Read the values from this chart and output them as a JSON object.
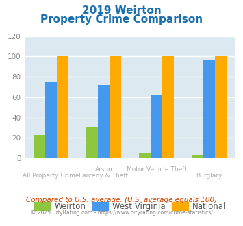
{
  "title_line1": "2019 Weirton",
  "title_line2": "Property Crime Comparison",
  "cat_labels_line1": [
    "All Property Crime",
    "Arson",
    "Motor Vehicle Theft",
    "Burglary"
  ],
  "cat_labels_line2": [
    "",
    "Larceny & Theft",
    "",
    ""
  ],
  "series": {
    "Weirton": [
      23,
      30,
      5,
      3
    ],
    "West Virginia": [
      75,
      72,
      62,
      96
    ],
    "National": [
      100,
      100,
      100,
      100
    ]
  },
  "colors": {
    "Weirton": "#8dc63f",
    "West Virginia": "#4499ee",
    "National": "#ffaa00"
  },
  "ylim": [
    0,
    120
  ],
  "yticks": [
    0,
    20,
    40,
    60,
    80,
    100,
    120
  ],
  "title_color": "#1a6faf",
  "subtitle_note": "Compared to U.S. average. (U.S. average equals 100)",
  "footer_static": "© 2025 CityRating.com - ",
  "footer_link": "https://www.cityrating.com/crime-statistics/",
  "bg_color": "#dce9f0",
  "grid_color": "#ffffff",
  "xtick_color": "#aaaaaa",
  "ytick_color": "#888888"
}
